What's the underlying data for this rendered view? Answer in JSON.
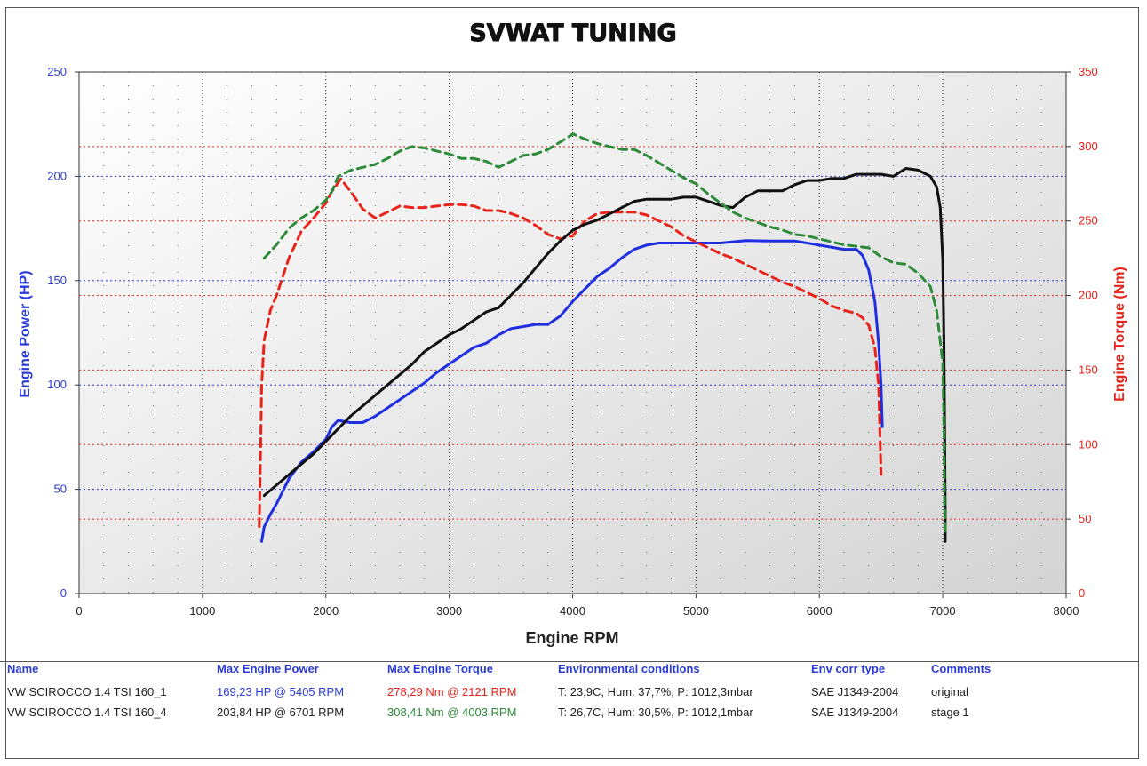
{
  "chart_data": {
    "type": "line",
    "title": "SVWAT TUNING",
    "xlabel": "Engine RPM",
    "ylabel_left": "Engine Power (HP)",
    "ylabel_right": "Engine Torque (Nm)",
    "xlim": [
      0,
      8000
    ],
    "ylim_left": [
      0,
      250
    ],
    "ylim_right": [
      0,
      350
    ],
    "x_ticks": [
      0,
      1000,
      2000,
      3000,
      4000,
      5000,
      6000,
      7000,
      8000
    ],
    "y_ticks_left": [
      0,
      50,
      100,
      150,
      200,
      250
    ],
    "y_ticks_right": [
      0,
      50,
      100,
      150,
      200,
      250,
      300,
      350
    ],
    "grid": true,
    "series": [
      {
        "name": "VW SCIROCCO 1.4 TSI 160_1",
        "quantity": "power",
        "axis": "left",
        "color": "#1f2fe0",
        "dash": "solid",
        "points": [
          [
            1480,
            25
          ],
          [
            1500,
            32
          ],
          [
            1550,
            38
          ],
          [
            1600,
            43
          ],
          [
            1700,
            55
          ],
          [
            1800,
            63
          ],
          [
            1900,
            68
          ],
          [
            2000,
            74
          ],
          [
            2050,
            80
          ],
          [
            2100,
            83
          ],
          [
            2200,
            82
          ],
          [
            2300,
            82
          ],
          [
            2400,
            85
          ],
          [
            2500,
            89
          ],
          [
            2600,
            93
          ],
          [
            2700,
            97
          ],
          [
            2800,
            101
          ],
          [
            2900,
            106
          ],
          [
            3000,
            110
          ],
          [
            3100,
            114
          ],
          [
            3200,
            118
          ],
          [
            3300,
            120
          ],
          [
            3400,
            124
          ],
          [
            3500,
            127
          ],
          [
            3600,
            128
          ],
          [
            3700,
            129
          ],
          [
            3800,
            129
          ],
          [
            3900,
            133
          ],
          [
            4000,
            140
          ],
          [
            4100,
            146
          ],
          [
            4200,
            152
          ],
          [
            4300,
            156
          ],
          [
            4400,
            161
          ],
          [
            4500,
            165
          ],
          [
            4600,
            167
          ],
          [
            4700,
            168
          ],
          [
            4800,
            168
          ],
          [
            5000,
            168
          ],
          [
            5200,
            168
          ],
          [
            5405,
            169.2
          ],
          [
            5600,
            169
          ],
          [
            5800,
            169
          ],
          [
            6000,
            167
          ],
          [
            6200,
            165
          ],
          [
            6300,
            165
          ],
          [
            6350,
            162
          ],
          [
            6400,
            155
          ],
          [
            6450,
            140
          ],
          [
            6480,
            120
          ],
          [
            6500,
            100
          ],
          [
            6510,
            80
          ]
        ]
      },
      {
        "name": "VW SCIROCCO 1.4 TSI 160_1",
        "quantity": "torque",
        "axis": "right",
        "color": "#e8231a",
        "dash": "dashed",
        "points": [
          [
            1460,
            45
          ],
          [
            1470,
            90
          ],
          [
            1480,
            140
          ],
          [
            1500,
            170
          ],
          [
            1550,
            190
          ],
          [
            1600,
            200
          ],
          [
            1700,
            225
          ],
          [
            1800,
            243
          ],
          [
            1900,
            252
          ],
          [
            2000,
            262
          ],
          [
            2050,
            270
          ],
          [
            2121,
            278.3
          ],
          [
            2200,
            270
          ],
          [
            2300,
            258
          ],
          [
            2400,
            252
          ],
          [
            2500,
            256
          ],
          [
            2600,
            260
          ],
          [
            2700,
            259
          ],
          [
            2800,
            259
          ],
          [
            2900,
            260
          ],
          [
            3000,
            261
          ],
          [
            3100,
            261
          ],
          [
            3200,
            260
          ],
          [
            3300,
            257
          ],
          [
            3400,
            257
          ],
          [
            3500,
            255
          ],
          [
            3600,
            252
          ],
          [
            3700,
            247
          ],
          [
            3800,
            241
          ],
          [
            3900,
            238
          ],
          [
            4000,
            240
          ],
          [
            4100,
            250
          ],
          [
            4200,
            255
          ],
          [
            4300,
            256
          ],
          [
            4400,
            256
          ],
          [
            4500,
            256
          ],
          [
            4600,
            254
          ],
          [
            4700,
            250
          ],
          [
            4800,
            246
          ],
          [
            4900,
            240
          ],
          [
            5000,
            236
          ],
          [
            5100,
            232
          ],
          [
            5200,
            228
          ],
          [
            5300,
            225
          ],
          [
            5400,
            221
          ],
          [
            5500,
            217
          ],
          [
            5600,
            213
          ],
          [
            5700,
            209
          ],
          [
            5800,
            206
          ],
          [
            5900,
            202
          ],
          [
            6000,
            198
          ],
          [
            6100,
            193
          ],
          [
            6200,
            190
          ],
          [
            6300,
            188
          ],
          [
            6350,
            185
          ],
          [
            6400,
            180
          ],
          [
            6450,
            165
          ],
          [
            6480,
            140
          ],
          [
            6500,
            80
          ]
        ]
      },
      {
        "name": "VW SCIROCCO 1.4 TSI 160_4",
        "quantity": "power",
        "axis": "left",
        "color": "#111111",
        "dash": "solid",
        "points": [
          [
            1500,
            47
          ],
          [
            1600,
            52
          ],
          [
            1700,
            57
          ],
          [
            1800,
            62
          ],
          [
            1900,
            67
          ],
          [
            2000,
            73
          ],
          [
            2100,
            79
          ],
          [
            2200,
            85
          ],
          [
            2300,
            90
          ],
          [
            2400,
            95
          ],
          [
            2500,
            100
          ],
          [
            2600,
            105
          ],
          [
            2700,
            110
          ],
          [
            2800,
            116
          ],
          [
            2900,
            120
          ],
          [
            3000,
            124
          ],
          [
            3100,
            127
          ],
          [
            3200,
            131
          ],
          [
            3300,
            135
          ],
          [
            3400,
            137
          ],
          [
            3500,
            143
          ],
          [
            3600,
            149
          ],
          [
            3700,
            156
          ],
          [
            3800,
            163
          ],
          [
            3900,
            169
          ],
          [
            4000,
            174
          ],
          [
            4100,
            177
          ],
          [
            4200,
            179
          ],
          [
            4300,
            182
          ],
          [
            4400,
            185
          ],
          [
            4500,
            188
          ],
          [
            4600,
            189
          ],
          [
            4700,
            189
          ],
          [
            4800,
            189
          ],
          [
            4900,
            190
          ],
          [
            5000,
            190
          ],
          [
            5100,
            188
          ],
          [
            5200,
            186
          ],
          [
            5300,
            185
          ],
          [
            5400,
            190
          ],
          [
            5500,
            193
          ],
          [
            5600,
            193
          ],
          [
            5700,
            193
          ],
          [
            5800,
            196
          ],
          [
            5900,
            198
          ],
          [
            6000,
            198
          ],
          [
            6100,
            199
          ],
          [
            6200,
            199
          ],
          [
            6300,
            201
          ],
          [
            6400,
            201
          ],
          [
            6500,
            201
          ],
          [
            6600,
            200
          ],
          [
            6701,
            203.8
          ],
          [
            6800,
            203
          ],
          [
            6900,
            200
          ],
          [
            6950,
            195
          ],
          [
            6980,
            185
          ],
          [
            7000,
            160
          ],
          [
            7010,
            120
          ],
          [
            7015,
            80
          ],
          [
            7020,
            40
          ],
          [
            7020,
            25
          ]
        ]
      },
      {
        "name": "VW SCIROCCO 1.4 TSI 160_4",
        "quantity": "torque",
        "axis": "right",
        "color": "#2e8b3a",
        "dash": "dashed",
        "points": [
          [
            1500,
            225
          ],
          [
            1600,
            234
          ],
          [
            1700,
            245
          ],
          [
            1800,
            252
          ],
          [
            1900,
            257
          ],
          [
            2000,
            264
          ],
          [
            2050,
            270
          ],
          [
            2100,
            280
          ],
          [
            2200,
            284
          ],
          [
            2300,
            286
          ],
          [
            2400,
            288
          ],
          [
            2500,
            292
          ],
          [
            2600,
            297
          ],
          [
            2700,
            300
          ],
          [
            2800,
            299
          ],
          [
            2900,
            297
          ],
          [
            3000,
            295
          ],
          [
            3100,
            292
          ],
          [
            3200,
            292
          ],
          [
            3300,
            290
          ],
          [
            3400,
            286
          ],
          [
            3500,
            290
          ],
          [
            3600,
            294
          ],
          [
            3700,
            295
          ],
          [
            3800,
            298
          ],
          [
            3900,
            303
          ],
          [
            4003,
            308.4
          ],
          [
            4100,
            305
          ],
          [
            4200,
            302
          ],
          [
            4300,
            300
          ],
          [
            4400,
            298
          ],
          [
            4500,
            298
          ],
          [
            4600,
            294
          ],
          [
            4700,
            289
          ],
          [
            4800,
            284
          ],
          [
            4900,
            279
          ],
          [
            5000,
            275
          ],
          [
            5100,
            268
          ],
          [
            5200,
            262
          ],
          [
            5300,
            256
          ],
          [
            5400,
            252
          ],
          [
            5500,
            249
          ],
          [
            5600,
            246
          ],
          [
            5700,
            244
          ],
          [
            5800,
            241
          ],
          [
            5900,
            240
          ],
          [
            6000,
            238
          ],
          [
            6100,
            236
          ],
          [
            6200,
            234
          ],
          [
            6300,
            233
          ],
          [
            6400,
            232
          ],
          [
            6500,
            226
          ],
          [
            6600,
            222
          ],
          [
            6700,
            221
          ],
          [
            6800,
            215
          ],
          [
            6900,
            206
          ],
          [
            6950,
            190
          ],
          [
            7000,
            155
          ],
          [
            7010,
            110
          ],
          [
            7015,
            60
          ],
          [
            7020,
            40
          ]
        ]
      }
    ]
  },
  "results": {
    "headers": [
      "Name",
      "Max Engine Power",
      "Max Engine Torque",
      "Environmental conditions",
      "Env corr type",
      "Comments"
    ],
    "rows": [
      {
        "name": "VW SCIROCCO 1.4 TSI 160_1",
        "max_power": "169,23 HP @ 5405 RPM",
        "max_torque": "278,29 Nm @ 2121 RPM",
        "env": "T: 23,9C, Hum: 37,7%, P: 1012,3mbar",
        "corr": "SAE J1349-2004",
        "comment": "original"
      },
      {
        "name": "VW SCIROCCO 1.4 TSI 160_4",
        "max_power": "203,84 HP @ 6701 RPM",
        "max_torque": "308,41 Nm @ 4003 RPM",
        "env": "T: 26,7C, Hum: 30,5%, P: 1012,1mbar",
        "corr": "SAE J1349-2004",
        "comment": "stage 1"
      }
    ]
  },
  "colors": {
    "left_axis": "#2a3bd6",
    "right_axis": "#e8231a",
    "grid_power": "#2a3bd6",
    "grid_torque": "#e8231a"
  }
}
